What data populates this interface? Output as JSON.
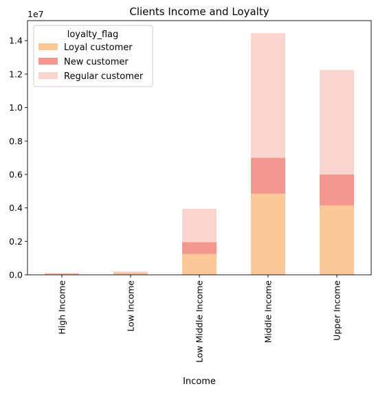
{
  "chart_data": {
    "type": "bar",
    "stacked": true,
    "title": "Clients Income and Loyalty",
    "xlabel": "Income",
    "ylabel": "",
    "y_offset_label": "1e7",
    "ylim": [
      0,
      1.52
    ],
    "y_ticks": [
      0.0,
      0.2,
      0.4,
      0.6,
      0.8,
      1.0,
      1.2,
      1.4
    ],
    "y_tick_labels": [
      "0.0",
      "0.2",
      "0.4",
      "0.6",
      "0.8",
      "1.0",
      "1.2",
      "1.4"
    ],
    "categories": [
      "High Income",
      "Low Income",
      "Low Middle Income",
      "Middle Income",
      "Upper Income"
    ],
    "series": [
      {
        "name": "Loyal customer",
        "color": "#fdc898",
        "values": [
          0.006,
          0.01,
          0.125,
          0.485,
          0.415
        ]
      },
      {
        "name": "New customer",
        "color": "#f4978e",
        "values": [
          0.002,
          0.002,
          0.07,
          0.215,
          0.185
        ]
      },
      {
        "name": "Regular customer",
        "color": "#fbd5cf",
        "values": [
          0.003,
          0.008,
          0.2,
          0.745,
          0.625
        ]
      }
    ],
    "legend": {
      "title": "loyalty_flag",
      "position": "top-left"
    },
    "grid": false
  }
}
